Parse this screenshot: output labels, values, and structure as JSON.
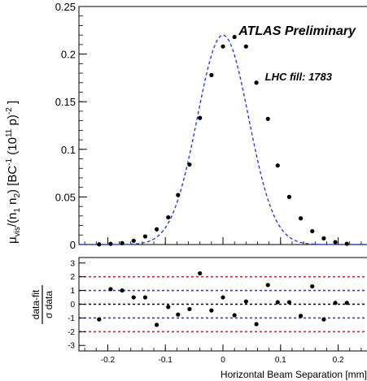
{
  "chart_data": [
    {
      "type": "scatter",
      "annotations": [
        "ATLAS Preliminary",
        "LHC fill: 1783"
      ],
      "ylabel_html": "μ<sub>vis</sub>/(n<sub>1</sub>n<sub>2</sub>) [BC<sup>-1</sup> (10<sup>11</sup> p)<sup>-2</sup> ]",
      "ylabel_parts": [
        {
          "t": "μ",
          "s": "base"
        },
        {
          "t": "vis",
          "s": "sub"
        },
        {
          "t": "/(n",
          "s": "base"
        },
        {
          "t": "1",
          "s": "sub"
        },
        {
          "t": " n",
          "s": "base"
        },
        {
          "t": "2",
          "s": "sub"
        },
        {
          "t": ") [BC",
          "s": "base"
        },
        {
          "t": "-1",
          "s": "sup"
        },
        {
          "t": " (10",
          "s": "base"
        },
        {
          "t": "11",
          "s": "sup"
        },
        {
          "t": " p)",
          "s": "base"
        },
        {
          "t": "-2",
          "s": "sup"
        },
        {
          "t": " ]",
          "s": "base"
        }
      ],
      "xlim": [
        -0.25,
        0.25
      ],
      "ylim": [
        0,
        0.25
      ],
      "yticks": [
        0,
        0.05,
        0.1,
        0.15,
        0.2,
        0.25
      ],
      "ytick_labels": [
        "0",
        "0.05",
        "0.1",
        "0.15",
        "0.2",
        "0.25"
      ],
      "fit_line": {
        "style": "dashed",
        "color": "#2a3fd0",
        "mu": 0.0,
        "sigma": 0.0445,
        "amplitude": 0.22
      },
      "points": {
        "x": [
          -0.215,
          -0.195,
          -0.175,
          -0.155,
          -0.135,
          -0.115,
          -0.095,
          -0.078,
          -0.058,
          -0.04,
          -0.02,
          0.0,
          0.02,
          0.04,
          0.058,
          0.078,
          0.095,
          0.115,
          0.135,
          0.155,
          0.175,
          0.195,
          0.215
        ],
        "y": [
          0.0002,
          0.0007,
          0.0015,
          0.004,
          0.0085,
          0.016,
          0.0285,
          0.052,
          0.084,
          0.133,
          0.178,
          0.208,
          0.218,
          0.208,
          0.17,
          0.132,
          0.083,
          0.05,
          0.0275,
          0.014,
          0.0065,
          0.0025,
          0.0008
        ]
      }
    },
    {
      "type": "scatter",
      "ylabel_top": "data-fit",
      "ylabel_bottom": "σ data",
      "xlabel": "Horizontal Beam Separation [mm]",
      "xlim": [
        -0.25,
        0.25
      ],
      "ylim": [
        -3.4,
        3.4
      ],
      "xticks": [
        -0.2,
        -0.1,
        0,
        0.1,
        0.2
      ],
      "xtick_labels": [
        "-0.2",
        "-0.1",
        "0",
        "0.1",
        "0.2"
      ],
      "yticks": [
        -3,
        -2,
        -1,
        0,
        1,
        2,
        3
      ],
      "ytick_labels": [
        "-3",
        "-2",
        "-1",
        "0",
        "1",
        "2",
        "3"
      ],
      "reference_lines": [
        {
          "y": 2,
          "color": "#e02020"
        },
        {
          "y": 1,
          "color": "#2a3fd0"
        },
        {
          "y": 0,
          "color": "#000000"
        },
        {
          "y": -1,
          "color": "#2a3fd0"
        },
        {
          "y": -2,
          "color": "#e02020"
        }
      ],
      "points": {
        "x": [
          -0.215,
          -0.195,
          -0.175,
          -0.155,
          -0.135,
          -0.115,
          -0.095,
          -0.078,
          -0.058,
          -0.04,
          -0.02,
          0.0,
          0.02,
          0.04,
          0.058,
          0.078,
          0.095,
          0.115,
          0.135,
          0.155,
          0.175,
          0.195,
          0.215
        ],
        "y": [
          -1.1,
          1.1,
          1.0,
          0.5,
          0.5,
          -1.5,
          -0.2,
          -0.75,
          -0.35,
          2.25,
          -0.45,
          0.5,
          -0.8,
          0.2,
          -1.45,
          1.4,
          0.15,
          0.15,
          -0.85,
          1.3,
          -1.1,
          0.1,
          0.1
        ]
      }
    }
  ]
}
